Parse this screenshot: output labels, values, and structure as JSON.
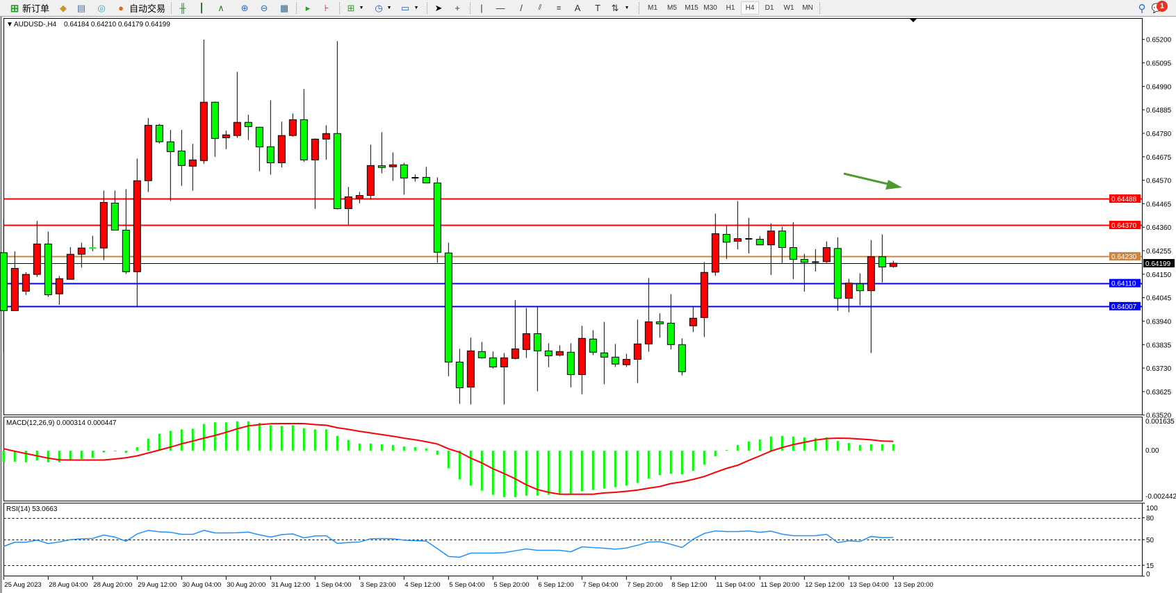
{
  "toolbar": {
    "new_order_label": "新订单",
    "autotrade_label": "自动交易",
    "timeframes": [
      "M1",
      "M5",
      "M15",
      "M30",
      "H1",
      "H4",
      "D1",
      "W1",
      "MN"
    ],
    "active_timeframe": "H4",
    "notification_count": "1"
  },
  "header": {
    "symbol": "AUDUSD-,H4",
    "ohlc": "0.64184 0.64210 0.64179 0.64199"
  },
  "chart_data": [
    {
      "type": "candlestick",
      "symbol": "AUDUSD-",
      "timeframe": "H4",
      "colors": {
        "bull": "#ff0000",
        "bear": "#00ff00",
        "wick": "#000000"
      },
      "x_tick_labels": [
        "25 Aug 2023",
        "28 Aug 04:00",
        "28 Aug 20:00",
        "29 Aug 12:00",
        "30 Aug 04:00",
        "30 Aug 20:00",
        "31 Aug 12:00",
        "1 Sep 04:00",
        "3 Sep 23:00",
        "4 Sep 12:00",
        "5 Sep 04:00",
        "5 Sep 20:00",
        "6 Sep 12:00",
        "7 Sep 04:00",
        "7 Sep 20:00",
        "8 Sep 12:00",
        "11 Sep 04:00",
        "11 Sep 20:00",
        "12 Sep 12:00",
        "13 Sep 04:00",
        "13 Sep 20:00"
      ],
      "x_tick_every_n_bars": 4,
      "ohlc": [
        [
          0.64246,
          0.64398,
          0.638,
          0.63987
        ],
        [
          0.63987,
          0.64252,
          0.63987,
          0.64176
        ],
        [
          0.64074,
          0.64159,
          0.64057,
          0.64149
        ],
        [
          0.64149,
          0.64388,
          0.64138,
          0.64285
        ],
        [
          0.64285,
          0.64341,
          0.64048,
          0.64058
        ],
        [
          0.64062,
          0.64142,
          0.64013,
          0.6413
        ],
        [
          0.64127,
          0.64271,
          0.64127,
          0.64239
        ],
        [
          0.64239,
          0.64291,
          0.64179,
          0.64267
        ],
        [
          0.64268,
          0.64322,
          0.64253,
          0.64266
        ],
        [
          0.64267,
          0.64524,
          0.64213,
          0.64471
        ],
        [
          0.64468,
          0.64524,
          0.64347,
          0.64347
        ],
        [
          0.64347,
          0.6453,
          0.64151,
          0.64161
        ],
        [
          0.64161,
          0.64667,
          0.64002,
          0.64568
        ],
        [
          0.64568,
          0.64848,
          0.64517,
          0.64816
        ],
        [
          0.64816,
          0.64822,
          0.64734,
          0.64742
        ],
        [
          0.64742,
          0.64795,
          0.64477,
          0.64698
        ],
        [
          0.64701,
          0.64795,
          0.64545,
          0.64636
        ],
        [
          0.64633,
          0.64733,
          0.64523,
          0.64661
        ],
        [
          0.64658,
          0.65199,
          0.64644,
          0.64919
        ],
        [
          0.64919,
          0.64922,
          0.64675,
          0.64757
        ],
        [
          0.6476,
          0.64792,
          0.64709,
          0.64773
        ],
        [
          0.6477,
          0.65055,
          0.6476,
          0.64829
        ],
        [
          0.64829,
          0.64863,
          0.6475,
          0.6481
        ],
        [
          0.64807,
          0.6481,
          0.6461,
          0.64719
        ],
        [
          0.6472,
          0.64928,
          0.64595,
          0.64648
        ],
        [
          0.64648,
          0.64832,
          0.64627,
          0.6477
        ],
        [
          0.6477,
          0.64869,
          0.64765,
          0.64841
        ],
        [
          0.64841,
          0.64978,
          0.64652,
          0.64661
        ],
        [
          0.64661,
          0.64757,
          0.64442,
          0.64754
        ],
        [
          0.64754,
          0.64816,
          0.64662,
          0.64779
        ],
        [
          0.64779,
          0.65192,
          0.64439,
          0.64443
        ],
        [
          0.64443,
          0.6454,
          0.64372,
          0.64496
        ],
        [
          0.64489,
          0.64518,
          0.64467,
          0.64502
        ],
        [
          0.64502,
          0.64729,
          0.64483,
          0.64636
        ],
        [
          0.64635,
          0.64785,
          0.64601,
          0.64627
        ],
        [
          0.6463,
          0.64695,
          0.64567,
          0.64639
        ],
        [
          0.64639,
          0.64648,
          0.64505,
          0.6458
        ],
        [
          0.64581,
          0.64596,
          0.64564,
          0.64581
        ],
        [
          0.64583,
          0.6463,
          0.64558,
          0.64558
        ],
        [
          0.64558,
          0.64583,
          0.64201,
          0.64248
        ],
        [
          0.64245,
          0.64291,
          0.63694,
          0.63757
        ],
        [
          0.63757,
          0.63816,
          0.6357,
          0.63642
        ],
        [
          0.63645,
          0.63866,
          0.63567,
          0.63807
        ],
        [
          0.63804,
          0.63847,
          0.63772,
          0.63776
        ],
        [
          0.63776,
          0.63804,
          0.63728,
          0.63735
        ],
        [
          0.63735,
          0.63797,
          0.63567,
          0.63776
        ],
        [
          0.63773,
          0.64034,
          0.63769,
          0.63816
        ],
        [
          0.63813,
          0.63999,
          0.63775,
          0.63884
        ],
        [
          0.63884,
          0.64005,
          0.63626,
          0.63807
        ],
        [
          0.63807,
          0.63841,
          0.63734,
          0.63785
        ],
        [
          0.63788,
          0.63832,
          0.63782,
          0.63804
        ],
        [
          0.63801,
          0.63841,
          0.63644,
          0.63701
        ],
        [
          0.63701,
          0.63919,
          0.63613,
          0.63863
        ],
        [
          0.6386,
          0.639,
          0.63788,
          0.63801
        ],
        [
          0.63798,
          0.63937,
          0.63658,
          0.63779
        ],
        [
          0.63779,
          0.63838,
          0.63735,
          0.63748
        ],
        [
          0.63745,
          0.63794,
          0.63735,
          0.63769
        ],
        [
          0.63769,
          0.63947,
          0.63663,
          0.63838
        ],
        [
          0.63838,
          0.64133,
          0.63803,
          0.63937
        ],
        [
          0.63937,
          0.63975,
          0.63866,
          0.63928
        ],
        [
          0.63931,
          0.64061,
          0.63813,
          0.63835
        ],
        [
          0.63835,
          0.63863,
          0.63697,
          0.63714
        ],
        [
          0.63919,
          0.64005,
          0.63891,
          0.63953
        ],
        [
          0.63956,
          0.64204,
          0.63869,
          0.64158
        ],
        [
          0.64159,
          0.64421,
          0.64143,
          0.64331
        ],
        [
          0.64328,
          0.64366,
          0.64218,
          0.64293
        ],
        [
          0.64297,
          0.64477,
          0.64261,
          0.64309
        ],
        [
          0.64308,
          0.64402,
          0.64243,
          0.64308
        ],
        [
          0.64306,
          0.64321,
          0.64281,
          0.64281
        ],
        [
          0.64281,
          0.64377,
          0.64146,
          0.64343
        ],
        [
          0.64343,
          0.64362,
          0.642,
          0.64269
        ],
        [
          0.64269,
          0.64383,
          0.64128,
          0.64216
        ],
        [
          0.64216,
          0.64241,
          0.64072,
          0.64203
        ],
        [
          0.64204,
          0.64262,
          0.64162,
          0.64204
        ],
        [
          0.64206,
          0.64297,
          0.642,
          0.64269
        ],
        [
          0.64265,
          0.64315,
          0.63986,
          0.64042
        ],
        [
          0.64042,
          0.64129,
          0.6398,
          0.6411
        ],
        [
          0.64107,
          0.64154,
          0.64011,
          0.64076
        ],
        [
          0.64076,
          0.64303,
          0.63797,
          0.64228
        ],
        [
          0.64228,
          0.64328,
          0.64113,
          0.64182
        ],
        [
          0.64184,
          0.6421,
          0.64179,
          0.64199
        ]
      ],
      "y_tick_labels": [
        "0.65200",
        "0.65095",
        "0.64990",
        "0.64885",
        "0.64780",
        "0.64675",
        "0.64570",
        "0.64465",
        "0.64360",
        "0.64255",
        "0.64150",
        "0.64045",
        "0.63940",
        "0.63835",
        "0.63730",
        "0.63625",
        "0.63520"
      ],
      "ylim": [
        0.6352,
        0.652
      ],
      "horizontal_lines": [
        {
          "price": "0.64488",
          "color": "#ff0000"
        },
        {
          "price": "0.64370",
          "color": "#ff0000"
        },
        {
          "price": "0.64230",
          "color": "#cd853f"
        },
        {
          "price": "0.64199",
          "color": "#000000"
        },
        {
          "price": "0.64110",
          "color": "#0000ff"
        },
        {
          "price": "0.64007",
          "color": "#0000ff"
        }
      ],
      "annotation_arrow": {
        "color": "#4f9a2f",
        "direction": "down-right"
      }
    },
    {
      "type": "bar+line",
      "title": "MACD(12,26,9) 0.000314 0.000447",
      "histogram_color": "#00ff00",
      "signal_color": "#ff0000",
      "y_tick_labels": [
        "0.001635",
        "0.00",
        "-0.002442"
      ],
      "ylim": [
        -0.002442,
        0.001635
      ],
      "macd": [
        -0.00053,
        -0.00053,
        -0.00056,
        -0.00047,
        -0.00056,
        -0.00056,
        -0.00043,
        -0.0004,
        -0.00034,
        -9e-05,
        -2e-05,
        -0.00011,
        0.00017,
        0.00058,
        0.00081,
        0.00095,
        0.00102,
        0.00105,
        0.00128,
        0.00136,
        0.00136,
        0.00141,
        0.00141,
        0.00133,
        0.00122,
        0.00119,
        0.00122,
        0.00108,
        0.00102,
        0.00102,
        0.00071,
        0.00051,
        0.00034,
        0.00034,
        0.00031,
        0.00027,
        0.0002,
        0.00017,
        0.0001,
        -0.00019,
        -0.00085,
        -0.00138,
        -0.00168,
        -0.00192,
        -0.00212,
        -0.00223,
        -0.00223,
        -0.00216,
        -0.00216,
        -0.00212,
        -0.00206,
        -0.00206,
        -0.00195,
        -0.00189,
        -0.00182,
        -0.00175,
        -0.00168,
        -0.00155,
        -0.00134,
        -0.00118,
        -0.00111,
        -0.00114,
        -0.00097,
        -0.00067,
        -0.00027,
        3e-05,
        0.00027,
        0.00044,
        0.00054,
        0.00068,
        0.00071,
        0.00068,
        0.00064,
        0.00061,
        0.00064,
        0.00047,
        0.00037,
        0.00027,
        0.00031,
        0.00031,
        0.000314
      ],
      "signal": [
        9e-05,
        -3e-05,
        -0.00014,
        -0.00025,
        -0.00036,
        -0.00044,
        -0.00045,
        -0.00045,
        -0.00045,
        -0.00045,
        -0.0004,
        -0.00034,
        -0.00025,
        -0.00011,
        3e-05,
        0.00017,
        0.00033,
        0.00046,
        0.0006,
        0.00073,
        0.00088,
        0.00105,
        0.00119,
        0.00125,
        0.00129,
        0.0013,
        0.0013,
        0.0013,
        0.00125,
        0.00122,
        0.0011,
        0.00102,
        0.00093,
        0.00085,
        0.00077,
        0.00069,
        0.0006,
        0.00052,
        0.00043,
        0.00032,
        9e-05,
        -8e-05,
        -0.00036,
        -0.00059,
        -0.00087,
        -0.0011,
        -0.00135,
        -0.00164,
        -0.00187,
        -0.002,
        -0.00209,
        -0.00209,
        -0.00209,
        -0.00209,
        -0.00203,
        -0.002,
        -0.00195,
        -0.00189,
        -0.0018,
        -0.00172,
        -0.00158,
        -0.0015,
        -0.00138,
        -0.00124,
        -0.00104,
        -0.00085,
        -0.0007,
        -0.00047,
        -0.00025,
        -2e-05,
        0.00015,
        0.00029,
        0.0004,
        0.00051,
        0.00058,
        0.0006,
        0.00059,
        0.00056,
        0.00052,
        0.00046,
        0.000447
      ]
    },
    {
      "type": "line",
      "title": "RSI(14) 53.0663",
      "color": "#1e90ff",
      "levels": [
        80,
        50,
        15
      ],
      "y_tick_labels": [
        "100",
        "80",
        "50",
        "15",
        "0"
      ],
      "ylim": [
        0,
        100
      ],
      "values": [
        40.8,
        46.5,
        46.5,
        49.4,
        44.6,
        46.8,
        50.0,
        51.3,
        51.6,
        56.3,
        53.5,
        47.8,
        57.9,
        62.7,
        60.8,
        60.1,
        57.3,
        57.3,
        62.7,
        59.2,
        59.2,
        59.5,
        60.4,
        56.6,
        53.5,
        57.0,
        57.9,
        52.5,
        55.1,
        55.4,
        44.9,
        46.2,
        46.8,
        51.3,
        51.6,
        51.3,
        49.4,
        48.7,
        48.1,
        37.7,
        27.0,
        26.0,
        31.6,
        31.6,
        31.6,
        32.3,
        34.8,
        37.3,
        35.4,
        35.4,
        35.4,
        33.5,
        40.2,
        39.2,
        38.3,
        37.0,
        38.6,
        42.4,
        46.8,
        47.2,
        43.7,
        39.2,
        50.6,
        58.5,
        62.0,
        61.1,
        61.1,
        62.0,
        60.1,
        61.7,
        57.6,
        55.4,
        55.4,
        55.4,
        57.3,
        45.9,
        48.4,
        47.5,
        54.4,
        52.8,
        53.0663
      ]
    }
  ]
}
